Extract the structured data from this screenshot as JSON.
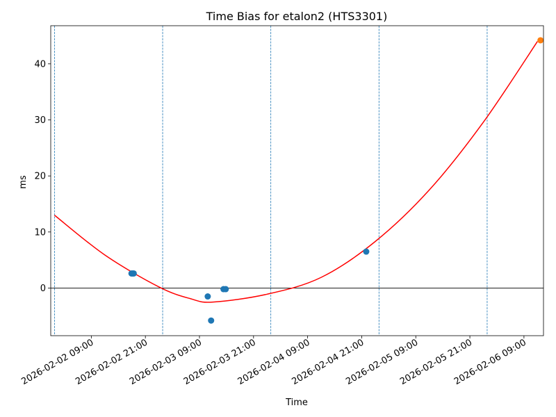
{
  "chart_data": {
    "type": "scatter",
    "title": "Time Bias for etalon2 (HTS3301)",
    "xlabel": "Time",
    "ylabel": "ms",
    "x_tick_labels": [
      "2026-02-02 09:00",
      "2026-02-02 21:00",
      "2026-02-03 09:00",
      "2026-02-03 21:00",
      "2026-02-04 09:00",
      "2026-02-04 21:00",
      "2026-02-05 09:00",
      "2026-02-05 21:00",
      "2026-02-06 09:00"
    ],
    "y_tick_labels": [
      "0",
      "10",
      "20",
      "30",
      "40"
    ],
    "y_ticks": [
      0,
      10,
      20,
      30,
      40
    ],
    "xlim": [
      "2026-02-02 00:00",
      "2026-02-06 13:20"
    ],
    "ylim": [
      -8.5,
      46.8
    ],
    "grid": false,
    "zero_line": true,
    "vertical_lines": [
      "2026-02-02 00:50",
      "2026-02-03 00:50",
      "2026-02-04 00:50",
      "2026-02-05 00:50",
      "2026-02-06 00:50"
    ],
    "fit_curve": {
      "color": "#ff0000",
      "x": [
        "2026-02-02 00:50",
        "2026-02-02 12:00",
        "2026-02-03 00:00",
        "2026-02-03 07:00",
        "2026-02-03 12:00",
        "2026-02-04 00:00",
        "2026-02-04 12:00",
        "2026-02-05 00:00",
        "2026-02-05 12:00",
        "2026-02-06 00:00",
        "2026-02-06 12:00"
      ],
      "y": [
        13.0,
        5.9,
        0.2,
        -1.9,
        -2.5,
        -1.1,
        1.9,
        8.3,
        17.5,
        29.6,
        44.0
      ]
    },
    "series": [
      {
        "color": "#1f77b4",
        "x": [
          "2026-02-02 17:55",
          "2026-02-02 18:10",
          "2026-02-02 18:25",
          "2026-02-03 10:50",
          "2026-02-03 11:35",
          "2026-02-03 14:20",
          "2026-02-03 14:50",
          "2026-02-04 22:00"
        ],
        "y": [
          2.6,
          2.6,
          2.6,
          -1.5,
          -5.8,
          -0.2,
          -0.2,
          6.5
        ]
      },
      {
        "color": "#ff7f0e",
        "x": [
          "2026-02-06 12:40"
        ],
        "y": [
          44.2
        ]
      }
    ]
  }
}
